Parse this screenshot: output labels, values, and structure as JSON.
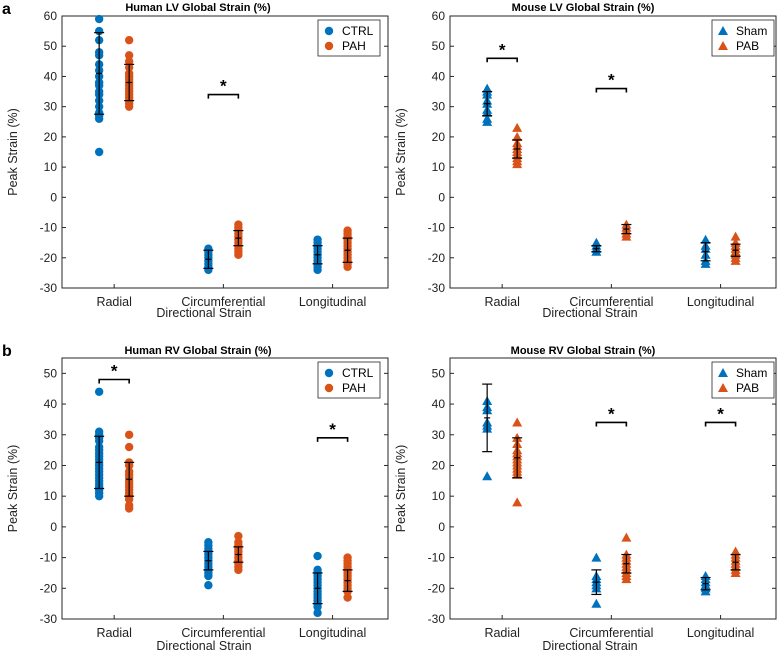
{
  "colors": {
    "control": "#0072BD",
    "disease": "#D95319",
    "axis": "#262626",
    "bracket": "#000000"
  },
  "panel_labels": [
    "a",
    "b"
  ],
  "chart_data": [
    {
      "type": "scatter",
      "panel": "a",
      "title": "Human LV Global Strain (%)",
      "ylabel": "Peak Strain (%)",
      "xlabel": "",
      "ylim": [
        -30,
        60
      ],
      "yticks": [
        -30,
        -20,
        -10,
        0,
        10,
        20,
        30,
        40,
        50,
        60
      ],
      "categories": [
        "Radial",
        "Circumferential",
        "Longitudinal"
      ],
      "marker": "circle",
      "legend": {
        "position": "top-right",
        "entries": [
          "CTRL",
          "PAH"
        ]
      },
      "series": [
        {
          "name": "CTRL",
          "color": "#0072BD",
          "points": [
            [
              59,
              55,
              52,
              48,
              47,
              44,
              42,
              40,
              38,
              37,
              35,
              34,
              32,
              30,
              28,
              27,
              26,
              15
            ],
            [
              -17,
              -18,
              -19,
              -20,
              -21,
              -22,
              -23,
              -24
            ],
            [
              -14,
              -15,
              -16,
              -17,
              -18,
              -19,
              -20,
              -21,
              -22,
              -23,
              -24
            ]
          ],
          "mean": [
            41,
            -20.5,
            -19
          ],
          "sd": [
            13.5,
            3,
            3
          ]
        },
        {
          "name": "PAH",
          "color": "#D95319",
          "points": [
            [
              52,
              47,
              45,
              43,
              41,
              40,
              39,
              38,
              37,
              36,
              35,
              34,
              33,
              32,
              31,
              30
            ],
            [
              -9,
              -10,
              -11,
              -12,
              -13,
              -14,
              -15,
              -16,
              -17,
              -18,
              -19
            ],
            [
              -11,
              -12,
              -13,
              -14,
              -15,
              -16,
              -17,
              -18,
              -19,
              -20,
              -21,
              -22,
              -23
            ]
          ],
          "mean": [
            38,
            -13.5,
            -17.5
          ],
          "sd": [
            6,
            2.5,
            4
          ]
        }
      ],
      "significance": [
        {
          "category": "Circumferential",
          "value": 34,
          "label": "*"
        }
      ]
    },
    {
      "type": "scatter",
      "panel": "a",
      "title": "Mouse LV Global Strain (%)",
      "ylabel": "Peak Strain (%)",
      "xlabel": "",
      "ylim": [
        -30,
        60
      ],
      "yticks": [
        -30,
        -20,
        -10,
        0,
        10,
        20,
        30,
        40,
        50,
        60
      ],
      "categories": [
        "Radial",
        "Circumferential",
        "Longitudinal"
      ],
      "marker": "triangle",
      "legend": {
        "position": "top-right",
        "entries": [
          "Sham",
          "PAB"
        ]
      },
      "series": [
        {
          "name": "Sham",
          "color": "#0072BD",
          "points": [
            [
              36,
              35,
              34,
              32,
              31,
              29,
              28,
              26,
              25
            ],
            [
              -15,
              -16,
              -17,
              -18
            ],
            [
              -14,
              -16,
              -17,
              -19,
              -21,
              -22
            ]
          ],
          "mean": [
            31,
            -17,
            -18
          ],
          "sd": [
            4,
            1,
            3
          ]
        },
        {
          "name": "PAB",
          "color": "#D95319",
          "points": [
            [
              23,
              20,
              18,
              17,
              16,
              15,
              14,
              13,
              12,
              11
            ],
            [
              -9,
              -10,
              -11,
              -12,
              -13
            ],
            [
              -13,
              -15,
              -16,
              -17,
              -18,
              -19,
              -20,
              -21
            ]
          ],
          "mean": [
            16,
            -10.5,
            -17.5
          ],
          "sd": [
            3,
            1.5,
            2
          ]
        }
      ],
      "significance": [
        {
          "category": "Radial",
          "value": 46,
          "label": "*"
        },
        {
          "category": "Circumferential",
          "value": 36,
          "label": "*"
        }
      ]
    },
    {
      "type": "scatter",
      "panel": "b",
      "title": "Human RV Global Strain (%)",
      "ylabel": "Peak Strain (%)",
      "xlabel": "",
      "ylim": [
        -30,
        55
      ],
      "yticks": [
        -30,
        -20,
        -10,
        0,
        10,
        20,
        30,
        40,
        50
      ],
      "categories": [
        "Radial",
        "Circumferential",
        "Longitudinal"
      ],
      "marker": "circle",
      "legend": {
        "position": "top-right",
        "entries": [
          "CTRL",
          "PAH"
        ]
      },
      "series": [
        {
          "name": "CTRL",
          "color": "#0072BD",
          "points": [
            [
              44,
              31,
              30,
              29,
              28,
              26,
              25,
              24,
              23,
              22,
              21,
              20,
              19,
              18,
              17,
              16,
              15,
              14,
              13,
              12,
              11,
              10
            ],
            [
              -5,
              -6,
              -7,
              -8,
              -9,
              -10,
              -11,
              -12,
              -13,
              -14,
              -15,
              -16,
              -19
            ],
            [
              -9.5,
              -14,
              -15,
              -16,
              -17,
              -18,
              -19,
              -20,
              -21,
              -22,
              -23,
              -24,
              -25,
              -26,
              -28
            ]
          ],
          "mean": [
            21,
            -11,
            -20
          ],
          "sd": [
            8.5,
            3,
            5
          ]
        },
        {
          "name": "PAH",
          "color": "#D95319",
          "points": [
            [
              30,
              26,
              21,
              20,
              18,
              17,
              16,
              15,
              14,
              13,
              12,
              11,
              10,
              9,
              7,
              6
            ],
            [
              -3,
              -5,
              -6,
              -7,
              -8,
              -9,
              -10,
              -11,
              -12,
              -13,
              -14
            ],
            [
              -10,
              -11,
              -12,
              -13,
              -14,
              -15,
              -16,
              -17,
              -18,
              -19,
              -20,
              -21,
              -23
            ]
          ],
          "mean": [
            15.5,
            -9,
            -17.5
          ],
          "sd": [
            5.5,
            2.5,
            3.5
          ]
        }
      ],
      "significance": [
        {
          "category": "Radial",
          "value": 48,
          "label": "*"
        },
        {
          "category": "Longitudinal",
          "value": 29,
          "label": "*"
        }
      ]
    },
    {
      "type": "scatter",
      "panel": "b",
      "title": "Mouse RV Global Strain (%)",
      "ylabel": "Peak Strain (%)",
      "xlabel": "Directional Strain",
      "ylim": [
        -30,
        55
      ],
      "yticks": [
        -30,
        -20,
        -10,
        0,
        10,
        20,
        30,
        40,
        50
      ],
      "categories": [
        "Radial",
        "Circumferential",
        "Longitudinal"
      ],
      "marker": "triangle",
      "legend": {
        "position": "top-right",
        "entries": [
          "Sham",
          "PAB"
        ]
      },
      "series": [
        {
          "name": "Sham",
          "color": "#0072BD",
          "points": [
            [
              41,
              39,
              38,
              34,
              33,
              32,
              16.5
            ],
            [
              -10,
              -16,
              -17,
              -18,
              -19,
              -20,
              -25
            ],
            [
              -16,
              -17,
              -18,
              -19,
              -20,
              -21
            ]
          ],
          "mean": [
            35.5,
            -18,
            -18.5
          ],
          "sd": [
            11,
            4,
            2
          ]
        },
        {
          "name": "PAB",
          "color": "#D95319",
          "points": [
            [
              34,
              29,
              27,
              25,
              24,
              23,
              22,
              21,
              20,
              19,
              18,
              17,
              8
            ],
            [
              -3.5,
              -9,
              -10,
              -11,
              -12,
              -13,
              -14,
              -15,
              -16,
              -17
            ],
            [
              -8,
              -9,
              -10,
              -11,
              -12,
              -13,
              -14,
              -15
            ]
          ],
          "mean": [
            22.5,
            -12,
            -11.5
          ],
          "sd": [
            6.5,
            3,
            2.5
          ]
        }
      ],
      "significance": [
        {
          "category": "Circumferential",
          "value": 34,
          "label": "*"
        },
        {
          "category": "Longitudinal",
          "value": 34,
          "label": "*"
        }
      ]
    }
  ],
  "x_axis": {
    "category_labels": [
      "Radial",
      "Circumferential",
      "Longitudinal"
    ],
    "title": "Directional Strain"
  }
}
